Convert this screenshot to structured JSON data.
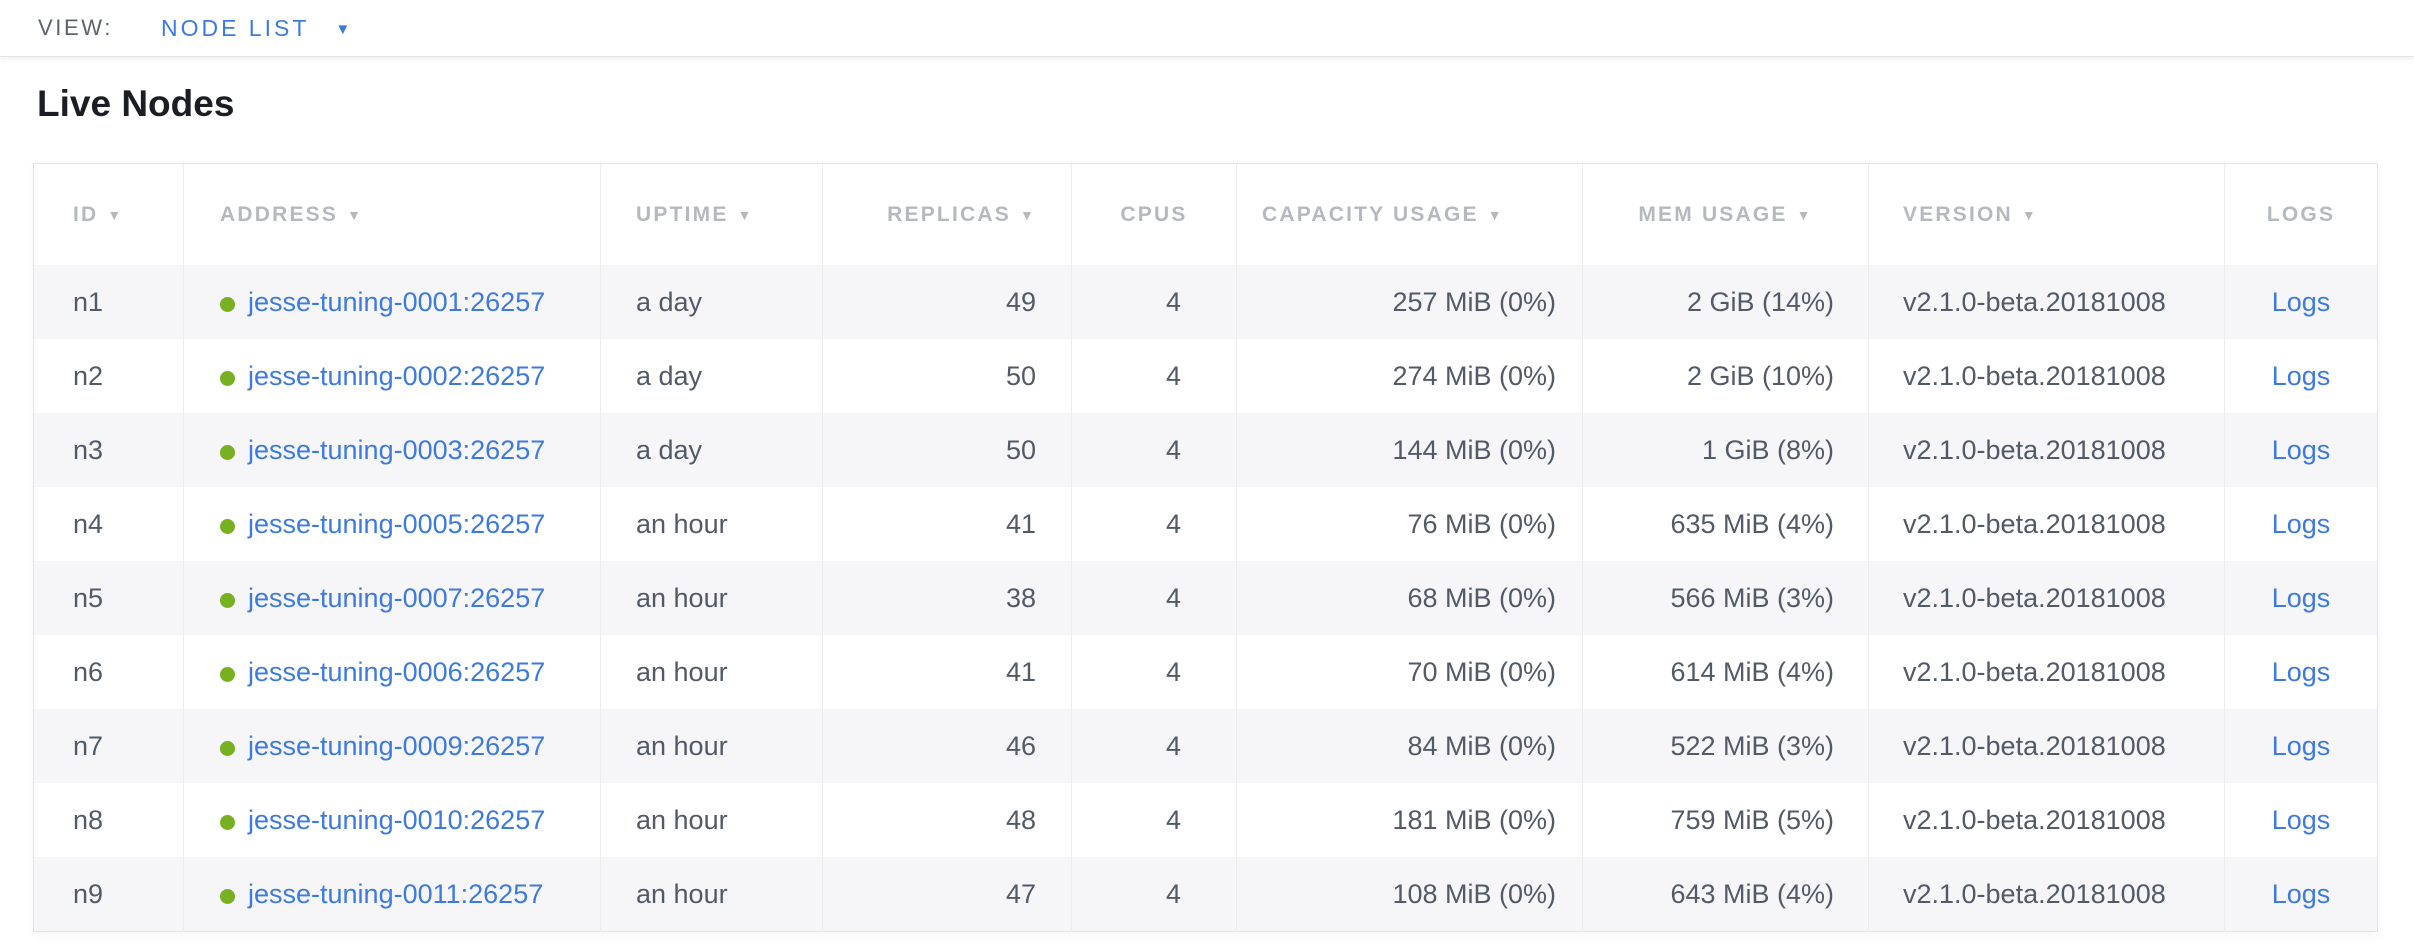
{
  "view_bar": {
    "label": "VIEW:",
    "selected": "NODE LIST"
  },
  "page": {
    "title": "Live Nodes"
  },
  "colors": {
    "accent_blue": "#3d7ae0",
    "live_green": "#77b122",
    "header_gray": "#b5b9bf",
    "cell_text": "#525a67",
    "row_stripe": "#f6f6f8",
    "border": "#e3e3e5"
  },
  "table": {
    "columns": [
      {
        "key": "id",
        "label": "ID",
        "sortable": true
      },
      {
        "key": "address",
        "label": "ADDRESS",
        "sortable": true
      },
      {
        "key": "uptime",
        "label": "UPTIME",
        "sortable": true
      },
      {
        "key": "replicas",
        "label": "REPLICAS",
        "sortable": true
      },
      {
        "key": "cpus",
        "label": "CPUS",
        "sortable": false
      },
      {
        "key": "capacity_usage",
        "label": "CAPACITY USAGE",
        "sortable": true
      },
      {
        "key": "mem_usage",
        "label": "MEM USAGE",
        "sortable": true
      },
      {
        "key": "version",
        "label": "VERSION",
        "sortable": true
      },
      {
        "key": "logs",
        "label": "LOGS",
        "sortable": false
      }
    ],
    "sort_icon": "▼",
    "rows": [
      {
        "id": "n1",
        "address": "jesse-tuning-0001:26257",
        "uptime": "a day",
        "replicas": "49",
        "cpus": "4",
        "capacity_usage": "257 MiB (0%)",
        "mem_usage": "2 GiB (14%)",
        "version": "v2.1.0-beta.20181008",
        "logs": "Logs",
        "status": "live"
      },
      {
        "id": "n2",
        "address": "jesse-tuning-0002:26257",
        "uptime": "a day",
        "replicas": "50",
        "cpus": "4",
        "capacity_usage": "274 MiB (0%)",
        "mem_usage": "2 GiB (10%)",
        "version": "v2.1.0-beta.20181008",
        "logs": "Logs",
        "status": "live"
      },
      {
        "id": "n3",
        "address": "jesse-tuning-0003:26257",
        "uptime": "a day",
        "replicas": "50",
        "cpus": "4",
        "capacity_usage": "144 MiB (0%)",
        "mem_usage": "1 GiB (8%)",
        "version": "v2.1.0-beta.20181008",
        "logs": "Logs",
        "status": "live"
      },
      {
        "id": "n4",
        "address": "jesse-tuning-0005:26257",
        "uptime": "an hour",
        "replicas": "41",
        "cpus": "4",
        "capacity_usage": "76 MiB (0%)",
        "mem_usage": "635 MiB (4%)",
        "version": "v2.1.0-beta.20181008",
        "logs": "Logs",
        "status": "live"
      },
      {
        "id": "n5",
        "address": "jesse-tuning-0007:26257",
        "uptime": "an hour",
        "replicas": "38",
        "cpus": "4",
        "capacity_usage": "68 MiB (0%)",
        "mem_usage": "566 MiB (3%)",
        "version": "v2.1.0-beta.20181008",
        "logs": "Logs",
        "status": "live"
      },
      {
        "id": "n6",
        "address": "jesse-tuning-0006:26257",
        "uptime": "an hour",
        "replicas": "41",
        "cpus": "4",
        "capacity_usage": "70 MiB (0%)",
        "mem_usage": "614 MiB (4%)",
        "version": "v2.1.0-beta.20181008",
        "logs": "Logs",
        "status": "live"
      },
      {
        "id": "n7",
        "address": "jesse-tuning-0009:26257",
        "uptime": "an hour",
        "replicas": "46",
        "cpus": "4",
        "capacity_usage": "84 MiB (0%)",
        "mem_usage": "522 MiB (3%)",
        "version": "v2.1.0-beta.20181008",
        "logs": "Logs",
        "status": "live"
      },
      {
        "id": "n8",
        "address": "jesse-tuning-0010:26257",
        "uptime": "an hour",
        "replicas": "48",
        "cpus": "4",
        "capacity_usage": "181 MiB (0%)",
        "mem_usage": "759 MiB (5%)",
        "version": "v2.1.0-beta.20181008",
        "logs": "Logs",
        "status": "live"
      },
      {
        "id": "n9",
        "address": "jesse-tuning-0011:26257",
        "uptime": "an hour",
        "replicas": "47",
        "cpus": "4",
        "capacity_usage": "108 MiB (0%)",
        "mem_usage": "643 MiB (4%)",
        "version": "v2.1.0-beta.20181008",
        "logs": "Logs",
        "status": "live"
      }
    ]
  }
}
